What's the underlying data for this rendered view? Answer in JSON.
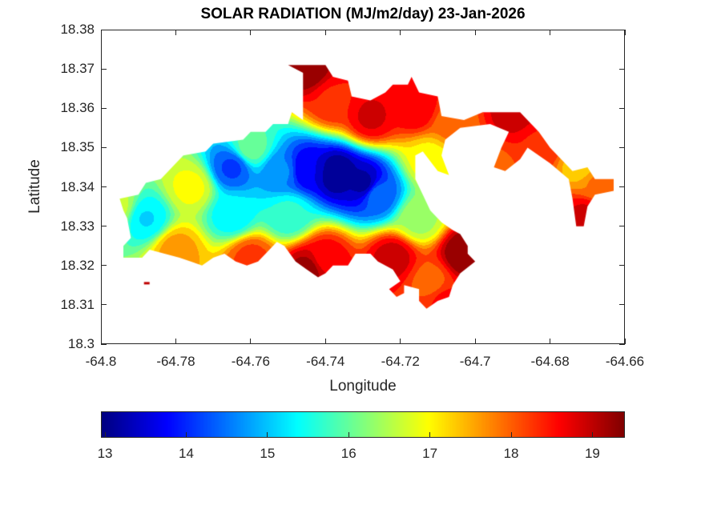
{
  "chart_data": {
    "type": "heatmap",
    "subtype": "filled-contour-map",
    "title": "SOLAR RADIATION (MJ/m2/day) 23-Jan-2026",
    "xlabel": "Longitude",
    "ylabel": "Latitude",
    "xlim": [
      -64.8,
      -64.66
    ],
    "ylim": [
      18.3,
      18.38
    ],
    "xticks": [
      -64.8,
      -64.78,
      -64.76,
      -64.74,
      -64.72,
      -64.7,
      -64.68,
      -64.66
    ],
    "xtick_labels": [
      "-64.8",
      "-64.78",
      "-64.76",
      "-64.74",
      "-64.72",
      "-64.7",
      "-64.68",
      "-64.66"
    ],
    "yticks": [
      18.3,
      18.31,
      18.32,
      18.33,
      18.34,
      18.35,
      18.36,
      18.37,
      18.38
    ],
    "ytick_labels": [
      "18.3",
      "18.31",
      "18.32",
      "18.33",
      "18.34",
      "18.35",
      "18.36",
      "18.37",
      "18.38"
    ],
    "grid": false,
    "colormap": "jet",
    "contour_levels": 20,
    "colorbar": {
      "orientation": "horizontal",
      "location": "bottom",
      "clim": [
        12.95,
        19.4
      ],
      "ticks": [
        13,
        14,
        15,
        16,
        17,
        18,
        19
      ],
      "tick_labels": [
        "13",
        "14",
        "15",
        "16",
        "17",
        "18",
        "19"
      ]
    },
    "value_field_samples": [
      {
        "lon": -64.737,
        "lat": 18.3435,
        "value": 13.0
      },
      {
        "lon": -64.73,
        "lat": 18.341,
        "value": 13.2
      },
      {
        "lon": -64.745,
        "lat": 18.3445,
        "value": 13.6
      },
      {
        "lon": -64.765,
        "lat": 18.345,
        "value": 14.2
      },
      {
        "lon": -64.752,
        "lat": 18.344,
        "value": 14.6
      },
      {
        "lon": -64.726,
        "lat": 18.338,
        "value": 14.4
      },
      {
        "lon": -64.788,
        "lat": 18.332,
        "value": 15.2
      },
      {
        "lon": -64.765,
        "lat": 18.333,
        "value": 15.3
      },
      {
        "lon": -64.75,
        "lat": 18.333,
        "value": 15.6
      },
      {
        "lon": -64.776,
        "lat": 18.34,
        "value": 16.9
      },
      {
        "lon": -64.796,
        "lat": 18.335,
        "value": 16.6
      },
      {
        "lon": -64.76,
        "lat": 18.35,
        "value": 16.0
      },
      {
        "lon": -64.715,
        "lat": 18.332,
        "value": 16.4
      },
      {
        "lon": -64.78,
        "lat": 18.324,
        "value": 17.6
      },
      {
        "lon": -64.76,
        "lat": 18.322,
        "value": 18.2
      },
      {
        "lon": -64.74,
        "lat": 18.322,
        "value": 18.6
      },
      {
        "lon": -64.745,
        "lat": 18.319,
        "value": 19.2
      },
      {
        "lon": -64.722,
        "lat": 18.322,
        "value": 18.9
      },
      {
        "lon": -64.703,
        "lat": 18.323,
        "value": 19.4
      },
      {
        "lon": -64.712,
        "lat": 18.316,
        "value": 18.0
      },
      {
        "lon": -64.708,
        "lat": 18.311,
        "value": 18.5
      },
      {
        "lon": -64.745,
        "lat": 18.37,
        "value": 19.3
      },
      {
        "lon": -64.738,
        "lat": 18.362,
        "value": 18.4
      },
      {
        "lon": -64.728,
        "lat": 18.358,
        "value": 18.8
      },
      {
        "lon": -64.716,
        "lat": 18.36,
        "value": 18.7
      },
      {
        "lon": -64.706,
        "lat": 18.356,
        "value": 17.9
      },
      {
        "lon": -64.712,
        "lat": 18.347,
        "value": 17.0
      },
      {
        "lon": -64.69,
        "lat": 18.359,
        "value": 18.9
      },
      {
        "lon": -64.683,
        "lat": 18.35,
        "value": 18.4
      },
      {
        "lon": -64.672,
        "lat": 18.345,
        "value": 17.3
      },
      {
        "lon": -64.668,
        "lat": 18.341,
        "value": 17.8
      },
      {
        "lon": -64.671,
        "lat": 18.333,
        "value": 18.8
      },
      {
        "lon": -64.695,
        "lat": 18.344,
        "value": 18.0
      }
    ],
    "region_outline": [
      [
        -64.795,
        18.337
      ],
      [
        -64.79,
        18.338
      ],
      [
        -64.788,
        18.341
      ],
      [
        -64.784,
        18.342
      ],
      [
        -64.778,
        18.348
      ],
      [
        -64.772,
        18.349
      ],
      [
        -64.77,
        18.351
      ],
      [
        -64.762,
        18.352
      ],
      [
        -64.76,
        18.354
      ],
      [
        -64.756,
        18.354
      ],
      [
        -64.754,
        18.356
      ],
      [
        -64.75,
        18.356
      ],
      [
        -64.749,
        18.359
      ],
      [
        -64.746,
        18.357
      ],
      [
        -64.746,
        18.369
      ],
      [
        -64.75,
        18.371
      ],
      [
        -64.74,
        18.371
      ],
      [
        -64.738,
        18.368
      ],
      [
        -64.734,
        18.367
      ],
      [
        -64.733,
        18.363
      ],
      [
        -64.728,
        18.362
      ],
      [
        -64.726,
        18.363
      ],
      [
        -64.724,
        18.364
      ],
      [
        -64.722,
        18.366
      ],
      [
        -64.718,
        18.366
      ],
      [
        -64.717,
        18.368
      ],
      [
        -64.715,
        18.364
      ],
      [
        -64.71,
        18.363
      ],
      [
        -64.709,
        18.358
      ],
      [
        -64.703,
        18.357
      ],
      [
        -64.698,
        18.359
      ],
      [
        -64.688,
        18.359
      ],
      [
        -64.685,
        18.356
      ],
      [
        -64.683,
        18.354
      ],
      [
        -64.68,
        18.35
      ],
      [
        -64.678,
        18.348
      ],
      [
        -64.674,
        18.344
      ],
      [
        -64.67,
        18.345
      ],
      [
        -64.668,
        18.342
      ],
      [
        -64.663,
        18.342
      ],
      [
        -64.663,
        18.339
      ],
      [
        -64.668,
        18.338
      ],
      [
        -64.67,
        18.335
      ],
      [
        -64.671,
        18.33
      ],
      [
        -64.673,
        18.33
      ],
      [
        -64.674,
        18.337
      ],
      [
        -64.675,
        18.342
      ],
      [
        -64.68,
        18.346
      ],
      [
        -64.683,
        18.348
      ],
      [
        -64.686,
        18.35
      ],
      [
        -64.688,
        18.347
      ],
      [
        -64.692,
        18.344
      ],
      [
        -64.695,
        18.345
      ],
      [
        -64.693,
        18.35
      ],
      [
        -64.691,
        18.354
      ],
      [
        -64.696,
        18.356
      ],
      [
        -64.704,
        18.355
      ],
      [
        -64.708,
        18.352
      ],
      [
        -64.709,
        18.348
      ],
      [
        -64.707,
        18.343
      ],
      [
        -64.71,
        18.344
      ],
      [
        -64.714,
        18.349
      ],
      [
        -64.716,
        18.348
      ],
      [
        -64.716,
        18.342
      ],
      [
        -64.714,
        18.338
      ],
      [
        -64.712,
        18.334
      ],
      [
        -64.709,
        18.331
      ],
      [
        -64.706,
        18.329
      ],
      [
        -64.704,
        18.328
      ],
      [
        -64.702,
        18.325
      ],
      [
        -64.702,
        18.323
      ],
      [
        -64.7,
        18.321
      ],
      [
        -64.704,
        18.318
      ],
      [
        -64.706,
        18.315
      ],
      [
        -64.707,
        18.312
      ],
      [
        -64.71,
        18.311
      ],
      [
        -64.713,
        18.309
      ],
      [
        -64.715,
        18.311
      ],
      [
        -64.715,
        18.314
      ],
      [
        -64.719,
        18.315
      ],
      [
        -64.719,
        18.313
      ],
      [
        -64.721,
        18.312
      ],
      [
        -64.723,
        18.314
      ],
      [
        -64.72,
        18.316
      ],
      [
        -64.722,
        18.319
      ],
      [
        -64.726,
        18.321
      ],
      [
        -64.728,
        18.323
      ],
      [
        -64.732,
        18.323
      ],
      [
        -64.734,
        18.32
      ],
      [
        -64.738,
        18.32
      ],
      [
        -64.74,
        18.318
      ],
      [
        -64.742,
        18.317
      ],
      [
        -64.745,
        18.319
      ],
      [
        -64.748,
        18.321
      ],
      [
        -64.751,
        18.325
      ],
      [
        -64.753,
        18.326
      ],
      [
        -64.756,
        18.323
      ],
      [
        -64.758,
        18.321
      ],
      [
        -64.761,
        18.32
      ],
      [
        -64.764,
        18.321
      ],
      [
        -64.767,
        18.323
      ],
      [
        -64.77,
        18.322
      ],
      [
        -64.773,
        18.32
      ],
      [
        -64.776,
        18.321
      ],
      [
        -64.779,
        18.322
      ],
      [
        -64.783,
        18.323
      ],
      [
        -64.787,
        18.324
      ],
      [
        -64.789,
        18.322
      ],
      [
        -64.794,
        18.322
      ],
      [
        -64.794,
        18.325
      ],
      [
        -64.792,
        18.327
      ],
      [
        -64.793,
        18.332
      ],
      [
        -64.794,
        18.334
      ],
      [
        -64.795,
        18.337
      ]
    ]
  }
}
